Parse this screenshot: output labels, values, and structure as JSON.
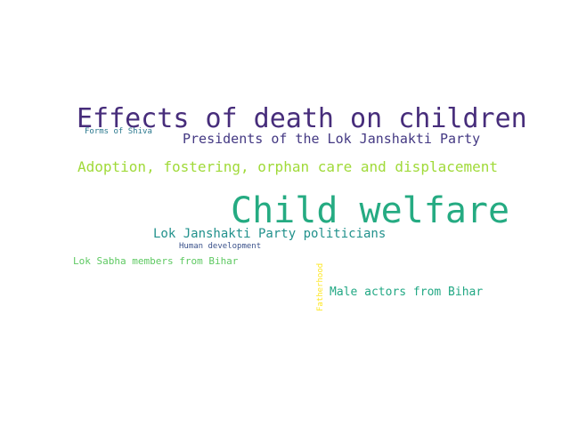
{
  "words": [
    {
      "text": "Effects of death on children",
      "color": "#472d7b"
    },
    {
      "text": "Forms of Shiva",
      "color": "#2a788e"
    },
    {
      "text": "Presidents of the Lok Janshakti Party",
      "color": "#443983"
    },
    {
      "text": "Adoption, fostering, orphan care and displacement",
      "color": "#a0da39"
    },
    {
      "text": "Child welfare",
      "color": "#25ab82"
    },
    {
      "text": "Lok Janshakti Party politicians",
      "color": "#21918c"
    },
    {
      "text": "Human development",
      "color": "#3b528b"
    },
    {
      "text": "Lok Sabha members from Bihar",
      "color": "#5ec962"
    },
    {
      "text": "Fatherhood",
      "color": "#fde725"
    },
    {
      "text": "Male actors from Bihar",
      "color": "#22a884"
    }
  ]
}
